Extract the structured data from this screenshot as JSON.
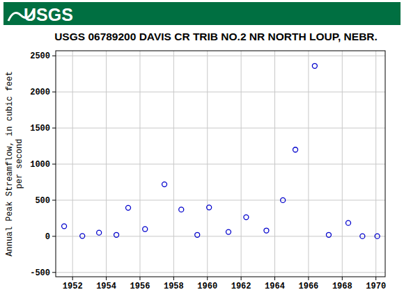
{
  "header": {
    "logo": "USGS"
  },
  "chart_data": {
    "type": "scatter",
    "title": "USGS 06789200 DAVIS CR TRIB NO.2 NR NORTH LOUP, NEBR.",
    "y_label": "Annual Peak Streamflow, in cubic feet per second",
    "x": [
      1951.5,
      1952.58,
      1953.57,
      1954.6,
      1955.3,
      1956.3,
      1957.45,
      1958.45,
      1959.4,
      1960.1,
      1961.25,
      1962.3,
      1963.5,
      1964.48,
      1965.22,
      1966.37,
      1967.2,
      1968.36,
      1969.2,
      1970.08
    ],
    "values": [
      140,
      5,
      50,
      20,
      395,
      100,
      720,
      370,
      20,
      400,
      60,
      265,
      80,
      500,
      1200,
      2360,
      20,
      185,
      2,
      2
    ],
    "color": "#0000cc",
    "marker": "circle",
    "grid": true,
    "xlim": [
      1951,
      1970.55
    ],
    "xticks": [
      1952,
      1954,
      1956,
      1958,
      1960,
      1962,
      1964,
      1966,
      1968,
      1970
    ],
    "ylim": [
      -560,
      2570
    ],
    "yticks": [
      -500,
      0,
      500,
      1000,
      1500,
      2000,
      2500
    ]
  }
}
